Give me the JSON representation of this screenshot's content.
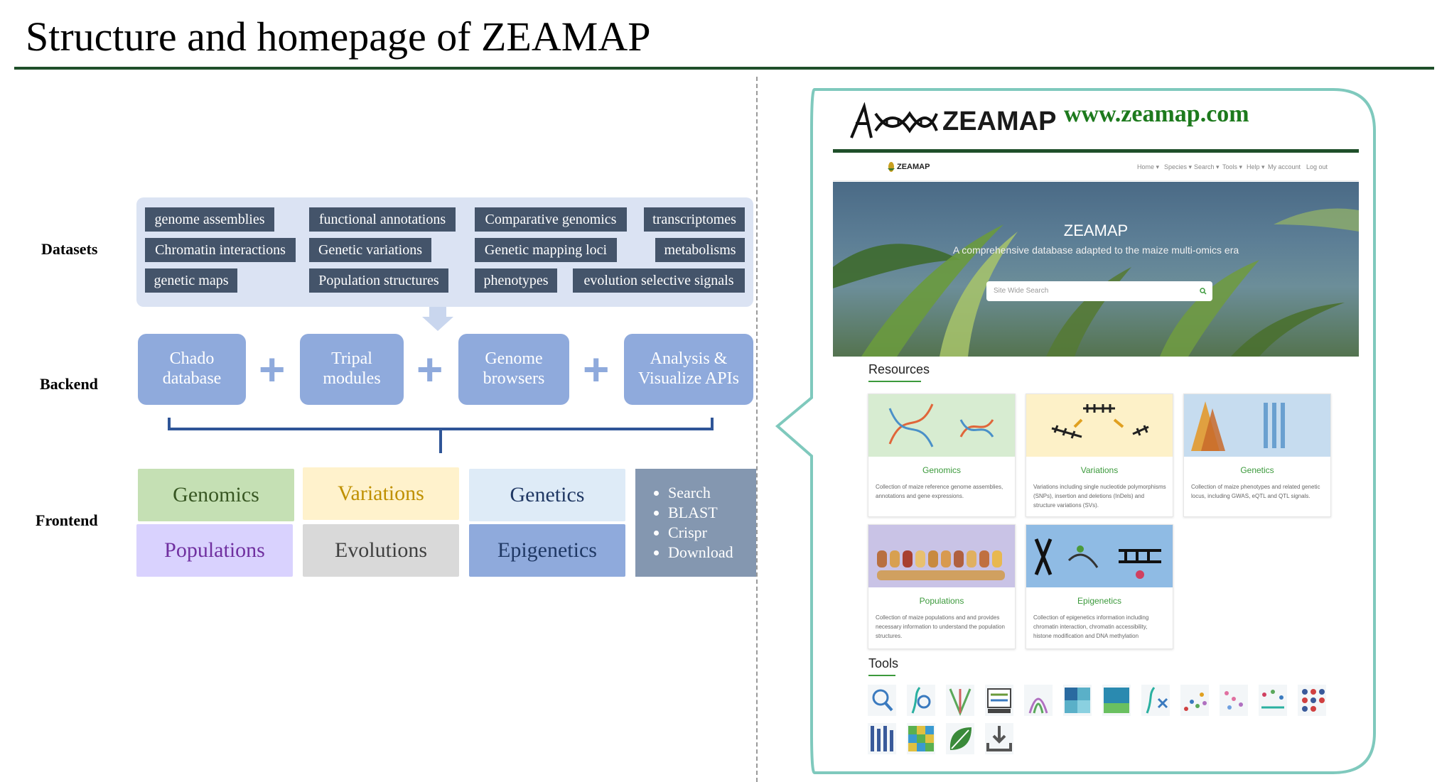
{
  "title": "Structure and homepage of ZEAMAP",
  "row_labels": {
    "datasets": "Datasets",
    "backend": "Backend",
    "frontend": "Frontend"
  },
  "datasets": [
    "genome assemblies",
    "functional annotations",
    "Comparative genomics",
    "transcriptomes",
    "Chromatin interactions",
    "Genetic variations",
    "Genetic mapping loci",
    "metabolisms",
    "genetic maps",
    "Population structures",
    "phenotypes",
    "evolution selective signals"
  ],
  "backend": [
    {
      "line1": "Chado",
      "line2": "database"
    },
    {
      "line1": "Tripal",
      "line2": "modules"
    },
    {
      "line1": "Genome",
      "line2": "browsers"
    },
    {
      "line1": "Analysis &",
      "line2": "Visualize APIs"
    }
  ],
  "plus": "+",
  "frontend": [
    "Genomics",
    "Variations",
    "Genetics",
    "Populations",
    "Evolutions",
    "Epigenetics"
  ],
  "tools_list": [
    "Search",
    "BLAST",
    "Crispr",
    "Download"
  ],
  "colors": {
    "genomics_bg": "#c5e0b4",
    "variations_bg": "#fff2cc",
    "genetics_bg": "#deebf7",
    "populations_bg": "#d9d2fe",
    "evolutions_bg": "#d9d9d9",
    "epigenetics_bg": "#8faadc",
    "callout_border": "#7fc9bd",
    "brand_green": "#3c9a3c"
  },
  "zeamap": {
    "logo": "ZEAMAP",
    "url": "www.zeamap.com",
    "nav_brand": "ZEAMAP",
    "nav": [
      "Home ▾",
      "Species ▾",
      "Search ▾",
      "Tools ▾",
      "Help ▾",
      "My account",
      "Log out"
    ],
    "hero_title": "ZEAMAP",
    "hero_subtitle": "A comprehensive database adapted to the maize multi-omics era",
    "search_placeholder": "Site Wide Search",
    "resources_heading": "Resources",
    "tools_heading": "Tools",
    "cards": [
      {
        "title": "Genomics",
        "desc": "Collection of maize reference genome assemblies, annotations and gene expressions."
      },
      {
        "title": "Variations",
        "desc": "Variations including single nucleotide polymorphisms (SNPs), insertion and deletions (InDels) and structure variations (SVs)."
      },
      {
        "title": "Genetics",
        "desc": "Collection of maize phenotypes and related genetic locus, including GWAS, eQTL and QTL signals."
      },
      {
        "title": "Populations",
        "desc": "Collection of maize populations and and provides necessary information to understand the population structures."
      },
      {
        "title": "Epigenetics",
        "desc": "Collection of epigenetics information including chromatin interaction, chromatin accessibility, histone modification and DNA methylation"
      }
    ]
  }
}
